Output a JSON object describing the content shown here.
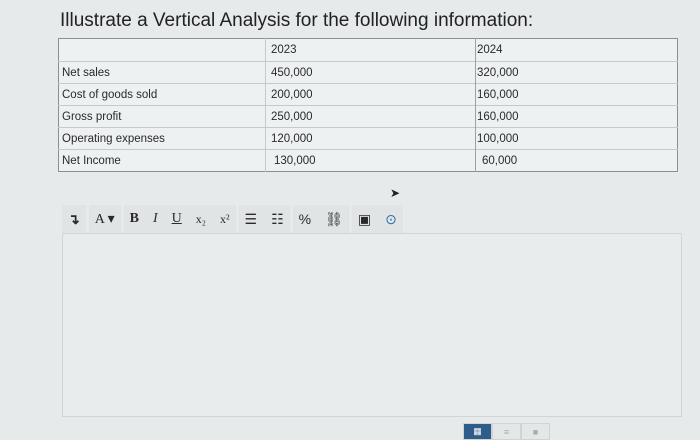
{
  "question": {
    "title": "Illustrate a Vertical Analysis for the following information:"
  },
  "table": {
    "headers": [
      "",
      "2023",
      "2024"
    ],
    "rows": [
      [
        "Net sales",
        "450,000",
        "320,000"
      ],
      [
        "Cost of goods sold",
        "200,000",
        "160,000"
      ],
      [
        "Gross profit",
        "250,000",
        "160,000"
      ],
      [
        "Operating expenses",
        "120,000",
        "100,000"
      ],
      [
        "Net  Income",
        "130,000",
        "60,000"
      ]
    ]
  },
  "toolbar": {
    "paragraph": "↴",
    "font_color": "A ▾",
    "bold": "B",
    "italic": "I",
    "underline": "U",
    "subscript": "x₂",
    "superscript": "x²",
    "bullet_list": "☰",
    "numbered_list": "☷",
    "link": "%",
    "unlink": "⛓",
    "image": "▣",
    "embed": "⊙"
  },
  "bottom_tabs": [
    {
      "icon": "grid-icon",
      "active": true
    },
    {
      "icon": "list-icon",
      "active": false
    },
    {
      "icon": "folder-icon",
      "active": false
    }
  ],
  "colors": {
    "active_tab": "#2e5d8a",
    "embed_icon": "#2f6fb4"
  }
}
